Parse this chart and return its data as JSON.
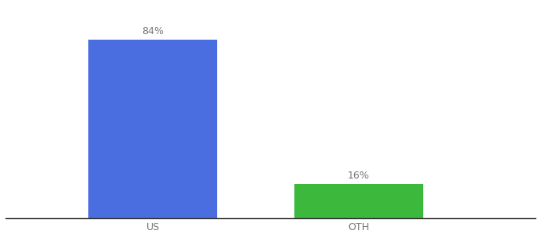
{
  "categories": [
    "US",
    "OTH"
  ],
  "values": [
    84,
    16
  ],
  "bar_colors": [
    "#4a6ee0",
    "#3cb83c"
  ],
  "labels": [
    "84%",
    "16%"
  ],
  "background_color": "#ffffff",
  "text_color": "#777777",
  "label_fontsize": 9,
  "tick_fontsize": 9,
  "ylim": [
    0,
    100
  ],
  "bar_width": 0.22,
  "x_positions": [
    0.3,
    0.65
  ],
  "xlim": [
    0.05,
    0.95
  ]
}
